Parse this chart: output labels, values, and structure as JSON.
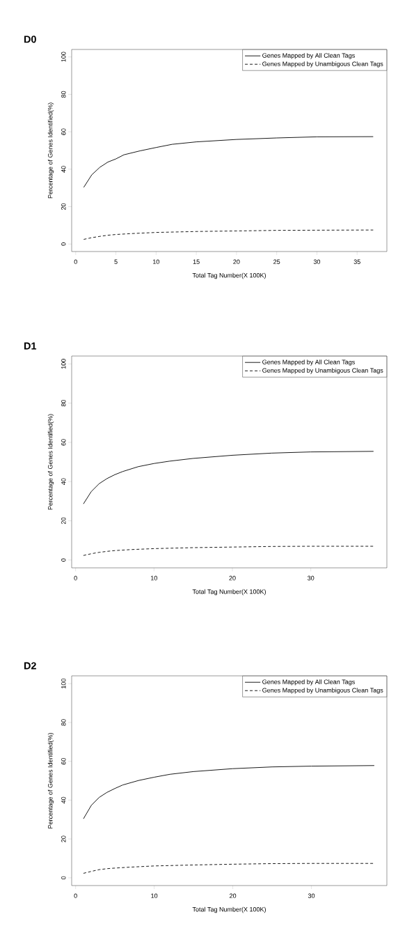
{
  "chart_data": [
    {
      "type": "line",
      "title": "D0",
      "xlabel": "Total Tag Number(X 100K)",
      "ylabel": "Percentage of Genes Identified(%)",
      "xlim": [
        -0.5,
        38.7
      ],
      "ylim": [
        -4,
        104
      ],
      "xticks": [
        0,
        5,
        10,
        15,
        20,
        25,
        30,
        35
      ],
      "yticks": [
        0,
        20,
        40,
        60,
        80,
        100
      ],
      "legend": "top right",
      "grid": false,
      "marker": "none",
      "series": [
        {
          "name": "Genes Mapped by All Clean Tags",
          "color": "#000000",
          "line_style": "solid",
          "x": [
            1,
            2,
            3,
            4,
            5,
            6,
            8,
            10,
            12,
            15,
            20,
            25,
            30,
            37
          ],
          "values": [
            30.3,
            37,
            41,
            43.8,
            45.5,
            47.7,
            49.8,
            51.6,
            53.3,
            54.6,
            55.9,
            56.7,
            57.3,
            57.4
          ]
        },
        {
          "name": "Genes Mapped by Unambigous Clean Tags",
          "color": "#000000",
          "line_style": "dashed",
          "x": [
            1,
            2,
            3,
            4,
            5,
            7,
            10,
            15,
            20,
            25,
            30,
            37
          ],
          "values": [
            2.5,
            3.4,
            4.1,
            4.7,
            5.1,
            5.6,
            6.2,
            6.7,
            7.0,
            7.3,
            7.4,
            7.5
          ]
        }
      ]
    },
    {
      "type": "line",
      "title": "D1",
      "xlabel": "Total Tag Number(X 100K)",
      "ylabel": "Percentage of Genes Identified(%)",
      "xlim": [
        -0.5,
        39.7
      ],
      "ylim": [
        -4,
        104
      ],
      "xticks": [
        0,
        10,
        20,
        30
      ],
      "yticks": [
        0,
        20,
        40,
        60,
        80,
        100
      ],
      "legend": "top right",
      "grid": false,
      "marker": "none",
      "series": [
        {
          "name": "Genes Mapped by All Clean Tags",
          "color": "#000000",
          "line_style": "solid",
          "x": [
            1,
            2,
            3,
            4,
            5,
            6,
            8,
            10,
            12,
            15,
            20,
            25,
            30,
            38
          ],
          "values": [
            28.6,
            34.9,
            38.9,
            41.5,
            43.5,
            45.1,
            47.6,
            49.2,
            50.4,
            51.8,
            53.4,
            54.5,
            55.1,
            55.4
          ]
        },
        {
          "name": "Genes Mapped by Unambigous Clean Tags",
          "color": "#000000",
          "line_style": "dashed",
          "x": [
            1,
            2,
            3,
            4,
            5,
            7,
            10,
            15,
            20,
            25,
            30,
            38
          ],
          "values": [
            2.3,
            3.2,
            3.9,
            4.4,
            4.8,
            5.3,
            5.8,
            6.3,
            6.6,
            6.9,
            7.0,
            7.0
          ]
        }
      ]
    },
    {
      "type": "line",
      "title": "D2",
      "xlabel": "Total Tag Number(X 100K)",
      "ylabel": "Percentage of Genes Identified(%)",
      "xlim": [
        -0.5,
        39.6
      ],
      "ylim": [
        -4,
        104
      ],
      "xticks": [
        0,
        10,
        20,
        30
      ],
      "yticks": [
        0,
        20,
        40,
        60,
        80,
        100
      ],
      "legend": "top right",
      "grid": false,
      "marker": "none",
      "series": [
        {
          "name": "Genes Mapped by All Clean Tags",
          "color": "#000000",
          "line_style": "solid",
          "x": [
            1,
            2,
            3,
            4,
            5,
            6,
            8,
            10,
            12,
            15,
            20,
            25,
            30,
            38
          ],
          "values": [
            30.4,
            37.3,
            41.4,
            44,
            46,
            47.8,
            50.1,
            51.8,
            53.3,
            54.7,
            56.2,
            57.1,
            57.5,
            57.8
          ]
        },
        {
          "name": "Genes Mapped by Unambigous Clean Tags",
          "color": "#000000",
          "line_style": "dashed",
          "x": [
            1,
            2,
            3,
            4,
            5,
            7,
            10,
            15,
            20,
            25,
            30,
            38
          ],
          "values": [
            2.3,
            3.3,
            4.2,
            4.7,
            5.0,
            5.5,
            6.1,
            6.6,
            7.0,
            7.3,
            7.4,
            7.4
          ]
        }
      ]
    }
  ]
}
